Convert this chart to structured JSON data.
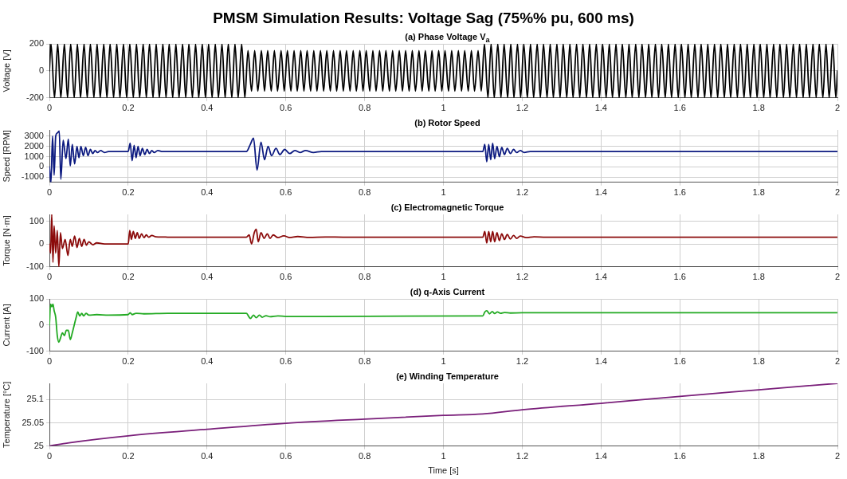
{
  "chart_data": [
    {
      "type": "line",
      "title": "PMSM Simulation Results: Voltage Sag (75%% pu, 600 ms)",
      "subtitle": "(a) Phase Voltage V$_{a}$",
      "ylabel": "Voltage [V]",
      "xlim": [
        0,
        2
      ],
      "xticks": [
        0,
        0.2,
        0.4,
        0.6,
        0.8,
        1,
        1.2,
        1.4,
        1.6,
        1.8,
        2
      ],
      "ylim": [
        -200,
        200
      ],
      "yticks": [
        -200,
        0,
        200
      ],
      "grid": true,
      "x": [
        0,
        0.004,
        0.013,
        0.021,
        0.029,
        0.038,
        0.046,
        0.054,
        0.063,
        0.071,
        0.079,
        0.088,
        0.096,
        0.104,
        0.113,
        0.121,
        0.129,
        0.138,
        0.146,
        0.154,
        0.163,
        0.171,
        0.179,
        0.188,
        0.196,
        0.204,
        0.213,
        0.221,
        0.229,
        0.238,
        0.246,
        0.254,
        0.263,
        0.271,
        0.279,
        0.288,
        0.296,
        0.304,
        0.313,
        0.321,
        0.329,
        0.338,
        0.346,
        0.354,
        0.363,
        0.371,
        0.379,
        0.388,
        0.396,
        0.404,
        0.413,
        0.421,
        0.429,
        0.438,
        0.446,
        0.454,
        0.463,
        0.471,
        0.479,
        0.488,
        0.496,
        0.504,
        0.513,
        0.521,
        0.529,
        0.538,
        0.546,
        0.554,
        0.563,
        0.571,
        0.579,
        0.588,
        0.596,
        0.604,
        0.613,
        0.621,
        0.629,
        0.638,
        0.646,
        0.654,
        0.663,
        0.671,
        0.679,
        0.688,
        0.696,
        0.704,
        0.713,
        0.721,
        0.729,
        0.738,
        0.746,
        0.754,
        0.763,
        0.771,
        0.779,
        0.788,
        0.796,
        0.804,
        0.813,
        0.821,
        0.829,
        0.838,
        0.846,
        0.854,
        0.863,
        0.871,
        0.879,
        0.888,
        0.896,
        0.904,
        0.913,
        0.921,
        0.929,
        0.938,
        0.946,
        0.954,
        0.963,
        0.971,
        0.979,
        0.988,
        0.996,
        1.004,
        1.013,
        1.021,
        1.029,
        1.038,
        1.046,
        1.054,
        1.063,
        1.071,
        1.079,
        1.088,
        1.096,
        1.104,
        1.113,
        1.121,
        1.129,
        1.138,
        1.146,
        1.154,
        1.163,
        1.171,
        1.179,
        1.188,
        1.196,
        1.204,
        1.213,
        1.221,
        1.229,
        1.238,
        1.246,
        1.254,
        1.263,
        1.271,
        1.279,
        1.288,
        1.296,
        1.304,
        1.313,
        1.321,
        1.329,
        1.338,
        1.346,
        1.354,
        1.363,
        1.371,
        1.379,
        1.388,
        1.396,
        1.404,
        1.413,
        1.421,
        1.429,
        1.438,
        1.446,
        1.454,
        1.463,
        1.471,
        1.479,
        1.488,
        1.496,
        1.504,
        1.513,
        1.521,
        1.529,
        1.538,
        1.546,
        1.554,
        1.563,
        1.571,
        1.579,
        1.588,
        1.596,
        1.604,
        1.613,
        1.621,
        1.629,
        1.638,
        1.646,
        1.654,
        1.663,
        1.671,
        1.679,
        1.688,
        1.696,
        1.704,
        1.713,
        1.721,
        1.729,
        1.738,
        1.746,
        1.754,
        1.763,
        1.771,
        1.779,
        1.788,
        1.796,
        1.804,
        1.813,
        1.821,
        1.829,
        1.838,
        1.846,
        1.854,
        1.863,
        1.871,
        1.879,
        1.888,
        1.896,
        1.904,
        1.913,
        1.921,
        1.929,
        1.938,
        1.946,
        1.954,
        1.963,
        1.971,
        1.979,
        1.988,
        1.996,
        2
      ],
      "series": [
        {
          "color": "#000000",
          "values": [
            0,
            200,
            -200,
            200,
            -200,
            200,
            -200,
            200,
            -200,
            200,
            -200,
            200,
            -200,
            200,
            -200,
            200,
            -200,
            200,
            -200,
            200,
            -200,
            200,
            -200,
            200,
            -200,
            200,
            -200,
            200,
            -200,
            200,
            -200,
            200,
            -200,
            200,
            -200,
            200,
            -200,
            200,
            -200,
            200,
            -200,
            200,
            -200,
            200,
            -200,
            200,
            -200,
            200,
            -200,
            200,
            -200,
            200,
            -200,
            200,
            -200,
            200,
            -200,
            200,
            -200,
            200,
            -200,
            150,
            -150,
            150,
            -150,
            150,
            -150,
            150,
            -150,
            150,
            -150,
            150,
            -150,
            150,
            -150,
            150,
            -150,
            150,
            -150,
            150,
            -150,
            150,
            -150,
            150,
            -150,
            150,
            -150,
            150,
            -150,
            150,
            -150,
            150,
            -150,
            150,
            -150,
            150,
            -150,
            150,
            -150,
            150,
            -150,
            150,
            -150,
            150,
            -150,
            150,
            -150,
            150,
            -150,
            150,
            -150,
            150,
            -150,
            150,
            -150,
            150,
            -150,
            150,
            -150,
            150,
            -150,
            150,
            -150,
            150,
            -150,
            150,
            -150,
            150,
            -150,
            150,
            -150,
            150,
            -150,
            200,
            -200,
            200,
            -200,
            200,
            -200,
            200,
            -200,
            200,
            -200,
            200,
            -200,
            200,
            -200,
            200,
            -200,
            200,
            -200,
            200,
            -200,
            200,
            -200,
            200,
            -200,
            200,
            -200,
            200,
            -200,
            200,
            -200,
            200,
            -200,
            200,
            -200,
            200,
            -200,
            200,
            -200,
            200,
            -200,
            200,
            -200,
            200,
            -200,
            200,
            -200,
            200,
            -200,
            200,
            -200,
            200,
            -200,
            200,
            -200,
            200,
            -200,
            200,
            -200,
            200,
            -200,
            200,
            -200,
            200,
            -200,
            200,
            -200,
            200,
            -200,
            200,
            -200,
            200,
            -200,
            200,
            -200,
            200,
            -200,
            200,
            -200,
            200,
            -200,
            200,
            -200,
            200,
            -200,
            200,
            -200,
            200,
            -200,
            200,
            -200,
            200,
            -200,
            200,
            -200,
            200,
            -200,
            200,
            -200,
            200,
            -200,
            200,
            -200,
            200,
            -200,
            200,
            -200,
            200,
            -200,
            0
          ]
        }
      ]
    },
    {
      "type": "line",
      "title": "(b) Rotor Speed",
      "ylabel": "Speed [RPM]",
      "xlim": [
        0,
        2
      ],
      "xticks": [
        0,
        0.2,
        0.4,
        0.6,
        0.8,
        1,
        1.2,
        1.4,
        1.6,
        1.8,
        2
      ],
      "ylim": [
        -1500,
        3600
      ],
      "yticks": [
        -1000,
        0,
        1000,
        2000,
        3000
      ],
      "grid": true,
      "x": [
        0,
        0.004,
        0.008,
        0.012,
        0.016,
        0.02,
        0.025,
        0.029,
        0.035,
        0.042,
        0.048,
        0.053,
        0.058,
        0.064,
        0.07,
        0.075,
        0.08,
        0.086,
        0.092,
        0.098,
        0.104,
        0.11,
        0.116,
        0.122,
        0.13,
        0.14,
        0.15,
        0.2,
        0.205,
        0.21,
        0.215,
        0.22,
        0.225,
        0.23,
        0.236,
        0.242,
        0.248,
        0.254,
        0.26,
        0.266,
        0.275,
        0.285,
        0.3,
        0.5,
        0.51,
        0.518,
        0.527,
        0.537,
        0.546,
        0.555,
        0.564,
        0.575,
        0.585,
        0.597,
        0.61,
        0.623,
        0.636,
        0.65,
        0.67,
        0.69,
        0.72,
        0.76,
        0.8,
        1.1,
        1.105,
        1.11,
        1.115,
        1.12,
        1.125,
        1.13,
        1.136,
        1.142,
        1.148,
        1.155,
        1.162,
        1.17,
        1.178,
        1.186,
        1.195,
        1.205,
        1.22,
        1.24,
        1.26,
        2
      ],
      "series": [
        {
          "color": "#0c1a80",
          "values": [
            0,
            -1500,
            3000,
            -800,
            3000,
            3300,
            3500,
            -1200,
            2600,
            800,
            2700,
            100,
            2200,
            300,
            2000,
            900,
            2000,
            1100,
            1900,
            1100,
            1700,
            1300,
            1600,
            1400,
            1600,
            1400,
            1500,
            1500,
            2300,
            600,
            2100,
            900,
            2000,
            1100,
            1800,
            1200,
            1700,
            1300,
            1600,
            1400,
            1600,
            1500,
            1500,
            1500,
            2200,
            2800,
            -300,
            2400,
            700,
            2000,
            1100,
            1800,
            1200,
            1700,
            1300,
            1600,
            1400,
            1600,
            1400,
            1500,
            1500,
            1500,
            1500,
            1500,
            2200,
            500,
            2200,
            700,
            2300,
            800,
            2000,
            1000,
            1900,
            1200,
            1800,
            1300,
            1700,
            1400,
            1600,
            1400,
            1500,
            1500,
            1500,
            1500
          ]
        }
      ]
    },
    {
      "type": "line",
      "title": "(c) Electromagnetic Torque",
      "ylabel": "Torque [N·m]",
      "xlim": [
        0,
        2
      ],
      "xticks": [
        0,
        0.2,
        0.4,
        0.6,
        0.8,
        1,
        1.2,
        1.4,
        1.6,
        1.8,
        2
      ],
      "ylim": [
        -100,
        130
      ],
      "yticks": [
        -100,
        0,
        100
      ],
      "grid": true,
      "x": [
        0,
        0.003,
        0.006,
        0.009,
        0.012,
        0.016,
        0.02,
        0.024,
        0.028,
        0.033,
        0.04,
        0.047,
        0.053,
        0.058,
        0.064,
        0.07,
        0.076,
        0.082,
        0.088,
        0.094,
        0.1,
        0.11,
        0.12,
        0.14,
        0.2,
        0.204,
        0.208,
        0.213,
        0.218,
        0.223,
        0.228,
        0.234,
        0.24,
        0.246,
        0.252,
        0.26,
        0.27,
        0.29,
        0.3,
        0.5,
        0.507,
        0.513,
        0.52,
        0.525,
        0.53,
        0.537,
        0.545,
        0.553,
        0.56,
        0.568,
        0.58,
        0.595,
        0.61,
        0.63,
        0.66,
        0.7,
        0.75,
        1.1,
        1.105,
        1.11,
        1.115,
        1.12,
        1.125,
        1.13,
        1.136,
        1.142,
        1.148,
        1.155,
        1.162,
        1.17,
        1.178,
        1.186,
        1.195,
        1.21,
        1.23,
        1.26,
        2
      ],
      "series": [
        {
          "color": "#8b0a0a",
          "values": [
            0,
            -40,
            130,
            -80,
            80,
            -40,
            60,
            -100,
            50,
            -20,
            20,
            -50,
            20,
            -10,
            35,
            -15,
            25,
            -10,
            20,
            -5,
            10,
            -3,
            5,
            0,
            0,
            60,
            20,
            55,
            25,
            50,
            25,
            45,
            28,
            40,
            30,
            38,
            32,
            31,
            30,
            30,
            40,
            0,
            50,
            65,
            10,
            50,
            25,
            45,
            25,
            40,
            28,
            36,
            28,
            33,
            29,
            31,
            30,
            30,
            55,
            5,
            55,
            10,
            55,
            10,
            50,
            15,
            45,
            20,
            42,
            22,
            38,
            25,
            35,
            28,
            32,
            30,
            30
          ]
        }
      ]
    },
    {
      "type": "line",
      "title": "(d) q-Axis Current",
      "ylabel": "Current [A]",
      "xlim": [
        0,
        2
      ],
      "xticks": [
        0,
        0.2,
        0.4,
        0.6,
        0.8,
        1,
        1.2,
        1.4,
        1.6,
        1.8,
        2
      ],
      "ylim": [
        -100,
        100
      ],
      "yticks": [
        -100,
        0,
        100
      ],
      "grid": true,
      "x": [
        0,
        0.003,
        0.006,
        0.009,
        0.012,
        0.016,
        0.02,
        0.024,
        0.028,
        0.033,
        0.038,
        0.043,
        0.048,
        0.053,
        0.058,
        0.063,
        0.068,
        0.072,
        0.077,
        0.082,
        0.087,
        0.093,
        0.1,
        0.12,
        0.15,
        0.2,
        0.205,
        0.21,
        0.22,
        0.24,
        0.3,
        0.5,
        0.505,
        0.51,
        0.518,
        0.525,
        0.533,
        0.54,
        0.55,
        0.56,
        0.58,
        0.6,
        0.7,
        1.1,
        1.105,
        1.11,
        1.117,
        1.124,
        1.13,
        1.137,
        1.145,
        1.155,
        1.17,
        1.2,
        2
      ],
      "series": [
        {
          "color": "#22aa22",
          "values": [
            0,
            80,
            70,
            80,
            55,
            30,
            -40,
            -65,
            -50,
            -30,
            -40,
            -20,
            -20,
            -55,
            -30,
            0,
            30,
            50,
            35,
            45,
            35,
            45,
            38,
            40,
            38,
            40,
            47,
            40,
            45,
            43,
            45,
            45,
            35,
            25,
            38,
            28,
            38,
            30,
            36,
            32,
            35,
            33,
            33,
            35,
            50,
            55,
            43,
            52,
            44,
            50,
            45,
            48,
            46,
            47,
            47
          ]
        }
      ]
    },
    {
      "type": "line",
      "title": "(e) Winding Temperature",
      "xlabel": "Time [s]",
      "ylabel": "Temperature [°C]",
      "xlim": [
        0,
        2
      ],
      "xticks": [
        0,
        0.2,
        0.4,
        0.6,
        0.8,
        1,
        1.2,
        1.4,
        1.6,
        1.8,
        2
      ],
      "ylim": [
        25,
        25.135
      ],
      "yticks": [
        25,
        25.05,
        25.1
      ],
      "grid": true,
      "x": [
        0,
        0.05,
        0.2,
        0.4,
        0.6,
        0.8,
        1,
        1.1,
        1.2,
        1.4,
        1.6,
        1.8,
        2
      ],
      "series": [
        {
          "color": "#7a1f7a",
          "values": [
            25,
            25.007,
            25.022,
            25.036,
            25.049,
            25.058,
            25.066,
            25.069,
            25.078,
            25.092,
            25.107,
            25.121,
            25.135
          ]
        }
      ]
    }
  ]
}
